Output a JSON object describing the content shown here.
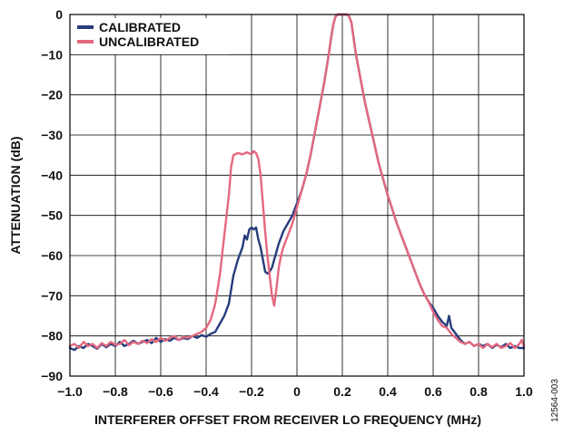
{
  "figure_id": "12564-003",
  "colors": {
    "calibrated": "#273d7c",
    "uncalibrated": "#e4687f",
    "grid": "#000000"
  },
  "chart_data": {
    "type": "line",
    "title": "",
    "xlabel": "INTERFERER OFFSET FROM RECEIVER LO FREQUENCY (MHz)",
    "ylabel": "ATTENUATION (dB)",
    "xlim": [
      -1.0,
      1.0
    ],
    "ylim": [
      -90,
      0
    ],
    "x_ticks": [
      -1.0,
      -0.8,
      -0.6,
      -0.4,
      -0.2,
      0,
      0.2,
      0.4,
      0.6,
      0.8,
      1.0
    ],
    "x_tick_labels": [
      "−1.0",
      "−0.8",
      "−0.6",
      "−0.4",
      "−0.2",
      "0",
      "0.2",
      "0.4",
      "0.6",
      "0.8",
      "1.0"
    ],
    "y_ticks": [
      0,
      -10,
      -20,
      -30,
      -40,
      -50,
      -60,
      -70,
      -80,
      -90
    ],
    "y_tick_labels": [
      "0",
      "−10",
      "−20",
      "−30",
      "−40",
      "−50",
      "−60",
      "−70",
      "−80",
      "−90"
    ],
    "grid": true,
    "legend_position": "top-left",
    "series": [
      {
        "name": "CALIBRATED",
        "color": "#273d7c",
        "points": [
          [
            -1.0,
            -83
          ],
          [
            -0.98,
            -83.5
          ],
          [
            -0.96,
            -82.5
          ],
          [
            -0.94,
            -83
          ],
          [
            -0.92,
            -82
          ],
          [
            -0.9,
            -82.5
          ],
          [
            -0.88,
            -83.2
          ],
          [
            -0.86,
            -82
          ],
          [
            -0.84,
            -82.8
          ],
          [
            -0.82,
            -82
          ],
          [
            -0.8,
            -82.5
          ],
          [
            -0.78,
            -81.5
          ],
          [
            -0.76,
            -82.5
          ],
          [
            -0.74,
            -82
          ],
          [
            -0.72,
            -81.2
          ],
          [
            -0.7,
            -82
          ],
          [
            -0.68,
            -81.5
          ],
          [
            -0.66,
            -81
          ],
          [
            -0.64,
            -81.8
          ],
          [
            -0.62,
            -80.5
          ],
          [
            -0.6,
            -81.5
          ],
          [
            -0.58,
            -80.8
          ],
          [
            -0.56,
            -81.2
          ],
          [
            -0.54,
            -80.5
          ],
          [
            -0.52,
            -81
          ],
          [
            -0.5,
            -80.5
          ],
          [
            -0.48,
            -80.8
          ],
          [
            -0.46,
            -80
          ],
          [
            -0.44,
            -80.5
          ],
          [
            -0.42,
            -79.8
          ],
          [
            -0.4,
            -80.2
          ],
          [
            -0.38,
            -79.5
          ],
          [
            -0.36,
            -79
          ],
          [
            -0.34,
            -77
          ],
          [
            -0.32,
            -75
          ],
          [
            -0.3,
            -72
          ],
          [
            -0.28,
            -65
          ],
          [
            -0.26,
            -61
          ],
          [
            -0.24,
            -58
          ],
          [
            -0.23,
            -55
          ],
          [
            -0.22,
            -56
          ],
          [
            -0.21,
            -53.5
          ],
          [
            -0.2,
            -53
          ],
          [
            -0.19,
            -53.5
          ],
          [
            -0.18,
            -53
          ],
          [
            -0.17,
            -56
          ],
          [
            -0.16,
            -58
          ],
          [
            -0.15,
            -61
          ],
          [
            -0.14,
            -64
          ],
          [
            -0.13,
            -64.5
          ],
          [
            -0.12,
            -64
          ],
          [
            -0.11,
            -63
          ],
          [
            -0.1,
            -61
          ],
          [
            -0.09,
            -59
          ],
          [
            -0.08,
            -57
          ],
          [
            -0.06,
            -54
          ],
          [
            -0.04,
            -52
          ],
          [
            -0.02,
            -50
          ],
          [
            0.0,
            -47
          ],
          [
            0.02,
            -44
          ],
          [
            0.04,
            -40
          ],
          [
            0.06,
            -35
          ],
          [
            0.08,
            -29
          ],
          [
            0.1,
            -23
          ],
          [
            0.12,
            -17
          ],
          [
            0.14,
            -10
          ],
          [
            0.15,
            -6
          ],
          [
            0.16,
            -2.5
          ],
          [
            0.17,
            -0.5
          ],
          [
            0.18,
            0
          ],
          [
            0.2,
            0
          ],
          [
            0.22,
            0
          ],
          [
            0.23,
            -0.5
          ],
          [
            0.24,
            -2
          ],
          [
            0.25,
            -6
          ],
          [
            0.26,
            -10
          ],
          [
            0.28,
            -16
          ],
          [
            0.3,
            -22
          ],
          [
            0.32,
            -27
          ],
          [
            0.34,
            -32
          ],
          [
            0.36,
            -37
          ],
          [
            0.38,
            -41
          ],
          [
            0.4,
            -45
          ],
          [
            0.42,
            -48.5
          ],
          [
            0.44,
            -52
          ],
          [
            0.46,
            -55
          ],
          [
            0.48,
            -58
          ],
          [
            0.5,
            -61
          ],
          [
            0.52,
            -64
          ],
          [
            0.54,
            -67
          ],
          [
            0.56,
            -69.5
          ],
          [
            0.58,
            -71.5
          ],
          [
            0.6,
            -73
          ],
          [
            0.62,
            -75
          ],
          [
            0.64,
            -76.5
          ],
          [
            0.66,
            -77.5
          ],
          [
            0.67,
            -75
          ],
          [
            0.68,
            -78
          ],
          [
            0.7,
            -79.5
          ],
          [
            0.72,
            -81
          ],
          [
            0.74,
            -82
          ],
          [
            0.76,
            -81.5
          ],
          [
            0.78,
            -82.5
          ],
          [
            0.8,
            -82
          ],
          [
            0.82,
            -82.5
          ],
          [
            0.84,
            -82
          ],
          [
            0.86,
            -83
          ],
          [
            0.88,
            -82.2
          ],
          [
            0.9,
            -82.8
          ],
          [
            0.92,
            -82
          ],
          [
            0.94,
            -83
          ],
          [
            0.96,
            -82.5
          ],
          [
            0.98,
            -83
          ],
          [
            1.0,
            -83
          ]
        ]
      },
      {
        "name": "UNCALIBRATED",
        "color": "#e4687f",
        "points": [
          [
            -1.0,
            -82.5
          ],
          [
            -0.98,
            -82
          ],
          [
            -0.96,
            -83
          ],
          [
            -0.94,
            -81.5
          ],
          [
            -0.92,
            -82.5
          ],
          [
            -0.9,
            -82
          ],
          [
            -0.88,
            -83
          ],
          [
            -0.86,
            -81.8
          ],
          [
            -0.84,
            -82.5
          ],
          [
            -0.82,
            -81.5
          ],
          [
            -0.8,
            -82.2
          ],
          [
            -0.78,
            -82
          ],
          [
            -0.76,
            -81
          ],
          [
            -0.74,
            -82.3
          ],
          [
            -0.72,
            -81.5
          ],
          [
            -0.7,
            -82
          ],
          [
            -0.68,
            -81.2
          ],
          [
            -0.66,
            -81.8
          ],
          [
            -0.64,
            -80.8
          ],
          [
            -0.62,
            -81.5
          ],
          [
            -0.6,
            -80.5
          ],
          [
            -0.58,
            -81.2
          ],
          [
            -0.56,
            -80.5
          ],
          [
            -0.54,
            -80
          ],
          [
            -0.52,
            -81
          ],
          [
            -0.5,
            -80.2
          ],
          [
            -0.48,
            -80.5
          ],
          [
            -0.46,
            -80
          ],
          [
            -0.44,
            -79.5
          ],
          [
            -0.42,
            -79
          ],
          [
            -0.4,
            -78
          ],
          [
            -0.38,
            -76
          ],
          [
            -0.36,
            -72
          ],
          [
            -0.34,
            -65
          ],
          [
            -0.32,
            -55
          ],
          [
            -0.3,
            -45
          ],
          [
            -0.29,
            -38
          ],
          [
            -0.28,
            -35
          ],
          [
            -0.26,
            -34.5
          ],
          [
            -0.24,
            -34.8
          ],
          [
            -0.22,
            -34.3
          ],
          [
            -0.2,
            -34.8
          ],
          [
            -0.19,
            -34
          ],
          [
            -0.18,
            -34.5
          ],
          [
            -0.17,
            -36
          ],
          [
            -0.16,
            -40
          ],
          [
            -0.15,
            -47
          ],
          [
            -0.14,
            -54
          ],
          [
            -0.13,
            -60
          ],
          [
            -0.12,
            -65
          ],
          [
            -0.11,
            -70
          ],
          [
            -0.1,
            -72.5
          ],
          [
            -0.09,
            -68
          ],
          [
            -0.08,
            -63
          ],
          [
            -0.07,
            -60
          ],
          [
            -0.06,
            -58
          ],
          [
            -0.04,
            -55
          ],
          [
            -0.02,
            -52
          ],
          [
            0.0,
            -48
          ],
          [
            0.02,
            -44
          ],
          [
            0.04,
            -40
          ],
          [
            0.06,
            -35
          ],
          [
            0.08,
            -29
          ],
          [
            0.1,
            -23
          ],
          [
            0.12,
            -17
          ],
          [
            0.14,
            -10
          ],
          [
            0.15,
            -6
          ],
          [
            0.16,
            -2.5
          ],
          [
            0.17,
            -0.5
          ],
          [
            0.18,
            0
          ],
          [
            0.2,
            0
          ],
          [
            0.22,
            0
          ],
          [
            0.23,
            -0.5
          ],
          [
            0.24,
            -2
          ],
          [
            0.25,
            -6
          ],
          [
            0.26,
            -10
          ],
          [
            0.28,
            -16
          ],
          [
            0.3,
            -22
          ],
          [
            0.32,
            -27
          ],
          [
            0.34,
            -32
          ],
          [
            0.36,
            -37
          ],
          [
            0.38,
            -41
          ],
          [
            0.4,
            -45
          ],
          [
            0.42,
            -48.5
          ],
          [
            0.44,
            -52
          ],
          [
            0.46,
            -55
          ],
          [
            0.48,
            -58
          ],
          [
            0.5,
            -61
          ],
          [
            0.52,
            -64
          ],
          [
            0.54,
            -67
          ],
          [
            0.56,
            -69.5
          ],
          [
            0.58,
            -71.5
          ],
          [
            0.6,
            -74
          ],
          [
            0.62,
            -76
          ],
          [
            0.64,
            -77.5
          ],
          [
            0.66,
            -78
          ],
          [
            0.68,
            -79.5
          ],
          [
            0.7,
            -80.5
          ],
          [
            0.72,
            -81.5
          ],
          [
            0.74,
            -82
          ],
          [
            0.76,
            -81.5
          ],
          [
            0.78,
            -82.5
          ],
          [
            0.8,
            -82
          ],
          [
            0.82,
            -83
          ],
          [
            0.84,
            -82
          ],
          [
            0.86,
            -82.8
          ],
          [
            0.88,
            -82
          ],
          [
            0.9,
            -83
          ],
          [
            0.92,
            -82.5
          ],
          [
            0.94,
            -81.8
          ],
          [
            0.96,
            -83
          ],
          [
            0.98,
            -82
          ],
          [
            0.99,
            -81
          ],
          [
            1.0,
            -82.5
          ]
        ]
      }
    ]
  }
}
